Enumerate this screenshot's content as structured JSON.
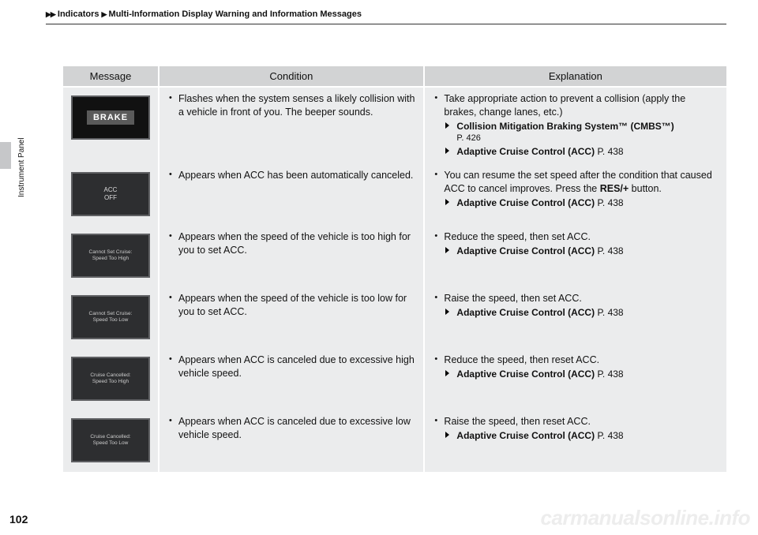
{
  "breadcrumb": {
    "sep": "▶▶",
    "part1": "Indicators",
    "sep2": "▶",
    "part2": "Multi-Information Display Warning and Information Messages"
  },
  "sideTab": "Instrument Panel",
  "pageNumber": "102",
  "watermark": "carmanualsonline.info",
  "headers": {
    "message": "Message",
    "condition": "Condition",
    "explanation": "Explanation"
  },
  "rows": [
    {
      "msgType": "brake",
      "msgText": "BRAKE",
      "condition": "Flashes when the system senses a likely collision with a vehicle in front of you. The beeper sounds.",
      "explLead": "Take appropriate action to prevent a collision (apply the brakes, change lanes, etc.)",
      "refs": [
        {
          "bold": "Collision Mitigation Braking System™ (CMBS™)",
          "tail": "",
          "sub": "P. 426"
        },
        {
          "bold": "Adaptive Cruise Control (ACC)",
          "tail": " P. 438"
        }
      ]
    },
    {
      "msgType": "text",
      "msgText": "ACC\nOFF",
      "condition": "Appears when ACC has been automatically canceled.",
      "explLead": "You can resume the set speed after the condition that caused ACC to cancel improves. Press the ",
      "explLeadBold": "RES/+",
      "explLeadTail": " button.",
      "refs": [
        {
          "bold": "Adaptive Cruise Control (ACC)",
          "tail": " P. 438"
        }
      ]
    },
    {
      "msgType": "small",
      "msgText": "Cannot Set Cruise:\nSpeed Too High",
      "condition": "Appears when the speed of the vehicle is too high for you to set ACC.",
      "explLead": "Reduce the speed, then set ACC.",
      "refs": [
        {
          "bold": "Adaptive Cruise Control (ACC)",
          "tail": " P. 438"
        }
      ]
    },
    {
      "msgType": "small",
      "msgText": "Cannot Set Cruise:\nSpeed Too Low",
      "condition": "Appears when the speed of the vehicle is too low for you to set ACC.",
      "explLead": "Raise the speed, then set ACC.",
      "refs": [
        {
          "bold": "Adaptive Cruise Control (ACC)",
          "tail": " P. 438"
        }
      ]
    },
    {
      "msgType": "small",
      "msgText": "Cruise Cancelled:\nSpeed Too High",
      "condition": "Appears when ACC is canceled due to excessive high vehicle speed.",
      "explLead": "Reduce the speed, then reset ACC.",
      "refs": [
        {
          "bold": "Adaptive Cruise Control (ACC)",
          "tail": " P. 438"
        }
      ]
    },
    {
      "msgType": "small",
      "msgText": "Cruise Cancelled:\nSpeed Too Low",
      "condition": "Appears when ACC is canceled due to excessive low vehicle speed.",
      "explLead": "Raise the speed, then reset ACC.",
      "refs": [
        {
          "bold": "Adaptive Cruise Control (ACC)",
          "tail": " P. 438"
        }
      ]
    }
  ]
}
